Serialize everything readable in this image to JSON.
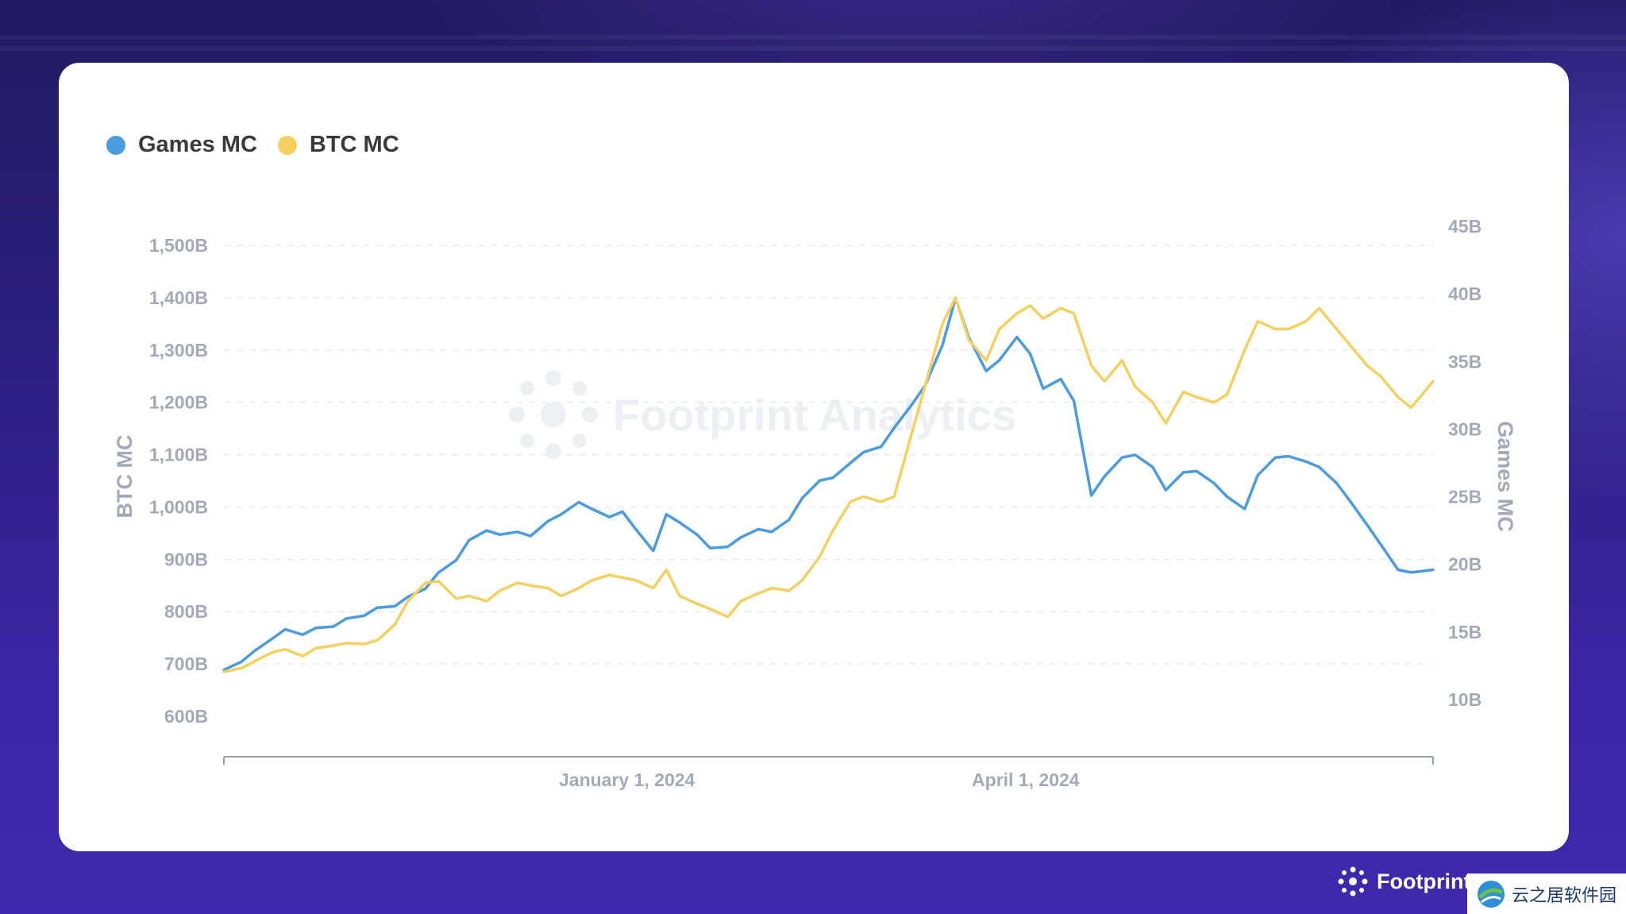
{
  "chart_data": {
    "type": "line",
    "title": "",
    "legend": {
      "placement": "top-left",
      "items": [
        "Games MC",
        "BTC MC"
      ]
    },
    "grid": true,
    "left_axis": {
      "label": "BTC MC",
      "ticks": [
        "600B",
        "700B",
        "800B",
        "900B",
        "1,000B",
        "1,100B",
        "1,200B",
        "1,300B",
        "1,400B",
        "1,500B"
      ],
      "range": [
        600,
        1500
      ]
    },
    "right_axis": {
      "label": "Games MC",
      "ticks": [
        "10B",
        "15B",
        "20B",
        "25B",
        "30B",
        "35B",
        "40B",
        "45B"
      ],
      "range": [
        10,
        45
      ]
    },
    "x_axis": {
      "range": [
        "2023-10-01",
        "2024-07-03"
      ],
      "ticks": [
        {
          "date": "2024-01-01",
          "label": "January 1, 2024"
        },
        {
          "date": "2024-04-01",
          "label": "April 1, 2024"
        }
      ]
    },
    "series": [
      {
        "name": "Games MC",
        "axis": "right",
        "color": "#4a9be0",
        "points": [
          [
            "2023-10-01",
            12.2
          ],
          [
            "2023-10-05",
            12.8
          ],
          [
            "2023-10-08",
            13.6
          ],
          [
            "2023-10-12",
            14.5
          ],
          [
            "2023-10-15",
            15.2
          ],
          [
            "2023-10-19",
            14.8
          ],
          [
            "2023-10-22",
            15.3
          ],
          [
            "2023-10-26",
            15.4
          ],
          [
            "2023-10-29",
            16.0
          ],
          [
            "2023-11-02",
            16.2
          ],
          [
            "2023-11-05",
            16.8
          ],
          [
            "2023-11-09",
            16.9
          ],
          [
            "2023-11-12",
            17.6
          ],
          [
            "2023-11-16",
            18.2
          ],
          [
            "2023-11-19",
            19.4
          ],
          [
            "2023-11-23",
            20.3
          ],
          [
            "2023-11-26",
            21.8
          ],
          [
            "2023-11-30",
            22.5
          ],
          [
            "2023-12-03",
            22.2
          ],
          [
            "2023-12-07",
            22.4
          ],
          [
            "2023-12-10",
            22.1
          ],
          [
            "2023-12-14",
            23.2
          ],
          [
            "2023-12-17",
            23.7
          ],
          [
            "2023-12-21",
            24.6
          ],
          [
            "2023-12-24",
            24.1
          ],
          [
            "2023-12-28",
            23.5
          ],
          [
            "2023-12-31",
            23.9
          ],
          [
            "2024-01-03",
            22.6
          ],
          [
            "2024-01-07",
            21.0
          ],
          [
            "2024-01-10",
            23.7
          ],
          [
            "2024-01-13",
            23.1
          ],
          [
            "2024-01-17",
            22.2
          ],
          [
            "2024-01-20",
            21.2
          ],
          [
            "2024-01-24",
            21.3
          ],
          [
            "2024-01-27",
            22.0
          ],
          [
            "2024-01-31",
            22.6
          ],
          [
            "2024-02-03",
            22.4
          ],
          [
            "2024-02-07",
            23.3
          ],
          [
            "2024-02-10",
            24.9
          ],
          [
            "2024-02-14",
            26.2
          ],
          [
            "2024-02-17",
            26.4
          ],
          [
            "2024-02-21",
            27.5
          ],
          [
            "2024-02-24",
            28.3
          ],
          [
            "2024-02-28",
            28.7
          ],
          [
            "2024-03-02",
            30.1
          ],
          [
            "2024-03-06",
            31.8
          ],
          [
            "2024-03-09",
            33.2
          ],
          [
            "2024-03-13",
            36.2
          ],
          [
            "2024-03-16",
            39.7
          ],
          [
            "2024-03-19",
            36.8
          ],
          [
            "2024-03-23",
            34.3
          ],
          [
            "2024-03-26",
            35.1
          ],
          [
            "2024-03-30",
            36.8
          ],
          [
            "2024-04-02",
            35.6
          ],
          [
            "2024-04-05",
            33.0
          ],
          [
            "2024-04-09",
            33.7
          ],
          [
            "2024-04-12",
            32.1
          ],
          [
            "2024-04-16",
            25.1
          ],
          [
            "2024-04-19",
            26.5
          ],
          [
            "2024-04-23",
            27.9
          ],
          [
            "2024-04-26",
            28.1
          ],
          [
            "2024-04-30",
            27.2
          ],
          [
            "2024-05-03",
            25.5
          ],
          [
            "2024-05-07",
            26.8
          ],
          [
            "2024-05-10",
            26.9
          ],
          [
            "2024-05-14",
            26.0
          ],
          [
            "2024-05-17",
            25.0
          ],
          [
            "2024-05-21",
            24.1
          ],
          [
            "2024-05-24",
            26.6
          ],
          [
            "2024-05-28",
            27.9
          ],
          [
            "2024-05-31",
            28.0
          ],
          [
            "2024-06-04",
            27.6
          ],
          [
            "2024-06-07",
            27.2
          ],
          [
            "2024-06-11",
            26.0
          ],
          [
            "2024-06-14",
            24.7
          ],
          [
            "2024-06-18",
            22.9
          ],
          [
            "2024-06-21",
            21.5
          ],
          [
            "2024-06-25",
            19.6
          ],
          [
            "2024-06-28",
            19.4
          ],
          [
            "2024-07-03",
            19.6
          ]
        ]
      },
      {
        "name": "BTC MC",
        "axis": "left",
        "color": "#f5cf5f",
        "points": [
          [
            "2023-10-01",
            685
          ],
          [
            "2023-10-05",
            692
          ],
          [
            "2023-10-08",
            705
          ],
          [
            "2023-10-12",
            722
          ],
          [
            "2023-10-15",
            728
          ],
          [
            "2023-10-19",
            715
          ],
          [
            "2023-10-22",
            730
          ],
          [
            "2023-10-26",
            735
          ],
          [
            "2023-10-29",
            740
          ],
          [
            "2023-11-02",
            738
          ],
          [
            "2023-11-05",
            745
          ],
          [
            "2023-11-09",
            775
          ],
          [
            "2023-11-12",
            820
          ],
          [
            "2023-11-16",
            855
          ],
          [
            "2023-11-19",
            858
          ],
          [
            "2023-11-23",
            825
          ],
          [
            "2023-11-26",
            830
          ],
          [
            "2023-11-30",
            820
          ],
          [
            "2023-12-03",
            840
          ],
          [
            "2023-12-07",
            855
          ],
          [
            "2023-12-10",
            850
          ],
          [
            "2023-12-14",
            845
          ],
          [
            "2023-12-17",
            830
          ],
          [
            "2023-12-21",
            845
          ],
          [
            "2023-12-24",
            860
          ],
          [
            "2023-12-28",
            870
          ],
          [
            "2023-12-31",
            865
          ],
          [
            "2024-01-03",
            860
          ],
          [
            "2024-01-07",
            845
          ],
          [
            "2024-01-10",
            880
          ],
          [
            "2024-01-13",
            830
          ],
          [
            "2024-01-17",
            815
          ],
          [
            "2024-01-20",
            805
          ],
          [
            "2024-01-24",
            790
          ],
          [
            "2024-01-27",
            820
          ],
          [
            "2024-01-31",
            835
          ],
          [
            "2024-02-03",
            845
          ],
          [
            "2024-02-07",
            840
          ],
          [
            "2024-02-10",
            860
          ],
          [
            "2024-02-14",
            905
          ],
          [
            "2024-02-17",
            955
          ],
          [
            "2024-02-21",
            1010
          ],
          [
            "2024-02-24",
            1020
          ],
          [
            "2024-02-28",
            1010
          ],
          [
            "2024-03-02",
            1020
          ],
          [
            "2024-03-06",
            1140
          ],
          [
            "2024-03-09",
            1230
          ],
          [
            "2024-03-13",
            1350
          ],
          [
            "2024-03-16",
            1400
          ],
          [
            "2024-03-19",
            1320
          ],
          [
            "2024-03-23",
            1280
          ],
          [
            "2024-03-26",
            1340
          ],
          [
            "2024-03-30",
            1370
          ],
          [
            "2024-04-02",
            1385
          ],
          [
            "2024-04-05",
            1360
          ],
          [
            "2024-04-09",
            1380
          ],
          [
            "2024-04-12",
            1370
          ],
          [
            "2024-04-16",
            1270
          ],
          [
            "2024-04-19",
            1240
          ],
          [
            "2024-04-23",
            1280
          ],
          [
            "2024-04-26",
            1230
          ],
          [
            "2024-04-30",
            1200
          ],
          [
            "2024-05-03",
            1160
          ],
          [
            "2024-05-07",
            1220
          ],
          [
            "2024-05-10",
            1210
          ],
          [
            "2024-05-14",
            1200
          ],
          [
            "2024-05-17",
            1215
          ],
          [
            "2024-05-21",
            1300
          ],
          [
            "2024-05-24",
            1355
          ],
          [
            "2024-05-28",
            1340
          ],
          [
            "2024-05-31",
            1340
          ],
          [
            "2024-06-04",
            1355
          ],
          [
            "2024-06-07",
            1380
          ],
          [
            "2024-06-11",
            1340
          ],
          [
            "2024-06-14",
            1310
          ],
          [
            "2024-06-18",
            1270
          ],
          [
            "2024-06-21",
            1250
          ],
          [
            "2024-06-25",
            1210
          ],
          [
            "2024-06-28",
            1190
          ],
          [
            "2024-07-03",
            1240
          ]
        ]
      }
    ]
  },
  "watermark": {
    "text": "Footprint Analytics"
  },
  "brand": {
    "name": "Footprint"
  },
  "badge": {
    "text": "云之居软件园"
  }
}
